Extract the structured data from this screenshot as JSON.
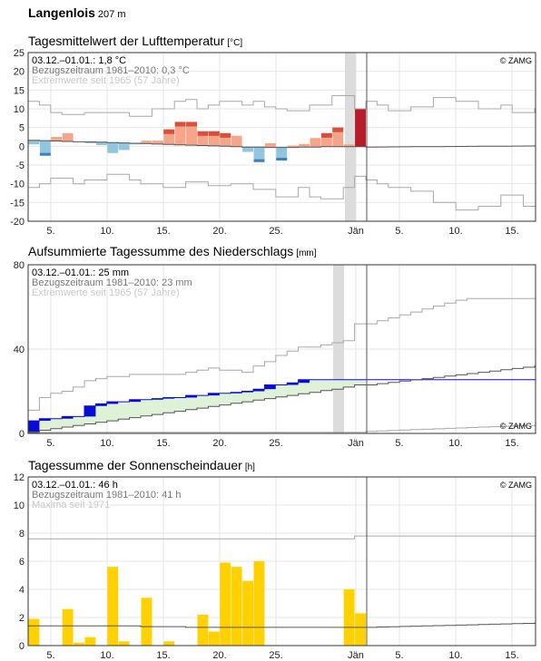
{
  "station": {
    "name": "Langenlois",
    "altitude": "207 m"
  },
  "colors": {
    "warm": "#f4a58a",
    "warm_dark": "#d94f3d",
    "warm_extreme": "#b81c2a",
    "cold": "#92c5de",
    "cold_dark": "#3d7fb8",
    "precip": "#0b0bd6",
    "precip_fill": "#ddf2d6",
    "sun": "#ffd100",
    "line": "#555555",
    "extreme_line": "#a8a8a8",
    "grid": "#e6e6e6"
  },
  "panels": {
    "temperature": {
      "title": "Tagesmittelwert der Lufttemperatur",
      "unit": "[°C]",
      "line1": "03.12.–01.01.: 1,8 °C",
      "line2": "Bezugszeitraum 1981–2010: 0,3 °C",
      "line3": "Extremwerte seit 1965 (57 Jahre)",
      "logo": "© ZAMG"
    },
    "precipitation": {
      "title": "Aufsummierte Tagessumme des Niederschlags",
      "unit": "[mm]",
      "line1": "03.12.–01.01.: 25 mm",
      "line2": "Bezugszeitraum 1981–2010: 23 mm",
      "line3": "Extremwerte seit 1965 (57 Jahre)",
      "logo": "© ZAMG"
    },
    "sunshine": {
      "title": "Tagessumme der Sonnenscheindauer",
      "unit": "[h]",
      "line1": "03.12.–01.01.: 46 h",
      "line2": "Bezugszeitraum 1981–2010: 41 h",
      "line3": "Maxima seit 1971",
      "logo": "© ZAMG"
    }
  },
  "chart_data": [
    {
      "type": "bar",
      "title": "Tagesmittelwert der Lufttemperatur [°C]",
      "x_tick_labels": [
        "5.",
        "10.",
        "15.",
        "20.",
        "25.",
        "Jän",
        "5.",
        "10.",
        "15."
      ],
      "ylim": [
        -20,
        25
      ],
      "y_ticks": [
        -20,
        -15,
        -10,
        -5,
        0,
        5,
        10,
        15,
        20,
        25
      ],
      "grid": true,
      "x": [
        "03.12.",
        "04.12.",
        "05.12.",
        "06.12.",
        "07.12.",
        "08.12.",
        "09.12.",
        "10.12.",
        "11.12.",
        "12.12.",
        "13.12.",
        "14.12.",
        "15.12.",
        "16.12.",
        "17.12.",
        "18.12.",
        "19.12.",
        "20.12.",
        "21.12.",
        "22.12.",
        "23.12.",
        "24.12.",
        "25.12.",
        "26.12.",
        "27.12.",
        "28.12.",
        "29.12.",
        "30.12.",
        "31.12.",
        "01.01."
      ],
      "series": [
        {
          "name": "Tagesmittel",
          "values": [
            0.5,
            -2.5,
            2.5,
            3.5,
            1.3,
            0.8,
            0.3,
            -1.8,
            -1.0,
            0.5,
            1.5,
            1.5,
            4.5,
            6.5,
            6.5,
            4.0,
            4.0,
            3.5,
            2.8,
            -1.5,
            -4.2,
            0.8,
            -3.8,
            0.2,
            0.6,
            2.2,
            3.5,
            5.0,
            0.5,
            10.0
          ]
        },
        {
          "name": "Bezugszeitraum 1981–2010",
          "values": [
            1.6,
            1.5,
            1.4,
            1.3,
            1.2,
            1.2,
            1.1,
            1.0,
            0.9,
            0.8,
            0.7,
            0.6,
            0.5,
            0.4,
            0.3,
            0.2,
            0.1,
            0.0,
            -0.1,
            -0.2,
            -0.2,
            -0.3,
            -0.3,
            -0.3,
            -0.2,
            -0.2,
            -0.1,
            -0.1,
            -0.1,
            -0.1
          ]
        },
        {
          "name": "Max",
          "values": [
            12,
            11,
            9,
            8.5,
            8.5,
            9,
            9,
            9,
            9,
            8,
            8,
            10,
            10,
            12,
            12.5,
            10,
            11,
            12,
            12,
            11,
            12,
            10.5,
            10,
            9.5,
            9.5,
            11,
            11,
            13.5,
            13.5,
            10
          ]
        },
        {
          "name": "Min",
          "values": [
            -11,
            -10,
            -8.5,
            -8.5,
            -10,
            -9,
            -9,
            -7.5,
            -7.5,
            -9,
            -10,
            -10,
            -11,
            -11,
            -9.5,
            -9.5,
            -10.5,
            -10.5,
            -10,
            -10,
            -11.5,
            -11.5,
            -13.5,
            -13.5,
            -11,
            -13.5,
            -14,
            -14,
            -11,
            -8
          ]
        }
      ]
    },
    {
      "type": "area",
      "title": "Aufsummierte Tagessumme des Niederschlags [mm]",
      "x_tick_labels": [
        "5.",
        "10.",
        "15.",
        "20.",
        "25.",
        "Jän",
        "5.",
        "10.",
        "15."
      ],
      "ylim": [
        0,
        80
      ],
      "y_ticks": [
        0,
        40,
        80
      ],
      "grid": true,
      "series": [
        {
          "name": "Aufsummiert",
          "values": [
            6,
            7,
            7,
            8,
            8,
            13,
            14,
            15,
            15,
            16,
            16,
            16.5,
            17,
            17,
            18,
            18,
            19,
            19,
            19.5,
            20,
            21,
            23,
            23,
            24,
            25.5,
            25.5,
            25.5,
            25.5,
            25.5,
            25.5
          ]
        },
        {
          "name": "Bezugszeitraum 1981–2010",
          "values": [
            0.7,
            1.5,
            2.3,
            3.0,
            3.8,
            4.5,
            5.3,
            6.0,
            6.8,
            7.5,
            8.3,
            9.0,
            9.8,
            10.5,
            11.3,
            12.0,
            12.8,
            13.5,
            14.3,
            15.0,
            15.8,
            16.5,
            17.3,
            18.0,
            18.8,
            19.5,
            20.3,
            21.0,
            22.0,
            23.0
          ]
        },
        {
          "name": "Max",
          "values": [
            11,
            17,
            19,
            20,
            22,
            25,
            26,
            27,
            27,
            28,
            28,
            28,
            28,
            28,
            29,
            30,
            31,
            30,
            30,
            29,
            32,
            34,
            37,
            39,
            41,
            41,
            42,
            43,
            44,
            52
          ]
        },
        {
          "name": "Min",
          "values": [
            0.5,
            0.5,
            0.5,
            0.5,
            0.5,
            0.5,
            0.5,
            0.5,
            0.5,
            0.5,
            0.5,
            0.5,
            0.5,
            0.5,
            0.5,
            0.5,
            0.5,
            0.5,
            0.5,
            0.5,
            0.5,
            0.5,
            0.5,
            0.5,
            0.5,
            0.5,
            0.5,
            0.5,
            0.5,
            0.5
          ]
        }
      ]
    },
    {
      "type": "bar",
      "title": "Tagessumme der Sonnenscheindauer [h]",
      "x_tick_labels": [
        "5.",
        "10.",
        "15.",
        "20.",
        "25.",
        "Jän",
        "5.",
        "10.",
        "15."
      ],
      "ylim": [
        0,
        12
      ],
      "y_ticks": [
        0,
        2,
        4,
        6,
        8,
        10,
        12
      ],
      "grid": true,
      "series": [
        {
          "name": "Tagessumme",
          "values": [
            1.9,
            0.0,
            0.0,
            2.6,
            0.2,
            0.6,
            0.0,
            5.6,
            0.3,
            0.0,
            3.4,
            0.0,
            0.3,
            0.0,
            0.0,
            2.2,
            1.0,
            5.9,
            5.6,
            4.6,
            6.0,
            0.0,
            0.0,
            0.0,
            0.0,
            0.0,
            0.0,
            0.0,
            4.0,
            2.3
          ]
        },
        {
          "name": "Bezugszeitraum 1981–2010",
          "values": [
            1.4,
            1.4,
            1.4,
            1.4,
            1.4,
            1.4,
            1.4,
            1.4,
            1.4,
            1.4,
            1.35,
            1.35,
            1.35,
            1.35,
            1.3,
            1.3,
            1.3,
            1.3,
            1.3,
            1.3,
            1.3,
            1.3,
            1.3,
            1.3,
            1.3,
            1.3,
            1.3,
            1.3,
            1.3,
            1.3
          ]
        },
        {
          "name": "Max",
          "values": [
            7.6,
            7.6,
            7.6,
            7.6,
            7.6,
            7.6,
            7.6,
            7.6,
            7.6,
            7.6,
            7.6,
            7.6,
            7.6,
            7.6,
            7.6,
            7.6,
            7.6,
            7.6,
            7.6,
            7.6,
            7.6,
            7.6,
            7.6,
            7.6,
            7.6,
            7.6,
            7.6,
            7.6,
            7.6,
            7.8
          ]
        }
      ]
    }
  ]
}
